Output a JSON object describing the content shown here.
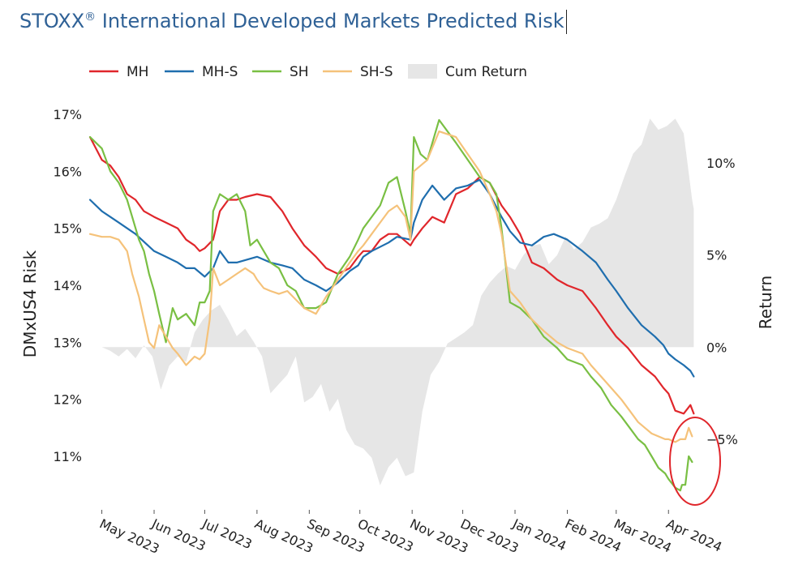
{
  "title_main": "STOXX",
  "title_reg": "®",
  "title_rest": " International Developed Markets Predicted Risk",
  "chart_data": {
    "type": "line",
    "title": "STOXX® International Developed Markets Predicted Risk",
    "ylabel": "DMxUS4 Risk",
    "y2label": "Return",
    "ylim": [
      10,
      17
    ],
    "y2lim": [
      -8.8,
      12.8
    ],
    "y_ticks": [
      "17%",
      "16%",
      "15%",
      "14%",
      "13%",
      "12%",
      "11%"
    ],
    "y_tick_values": [
      17,
      16,
      15,
      14,
      13,
      12,
      11
    ],
    "y2_ticks": [
      "10%",
      "5%",
      "0%",
      "−5%"
    ],
    "y2_tick_values": [
      10,
      5,
      0,
      -5
    ],
    "x_ticks": [
      "May 2023",
      "Jun 2023",
      "Jul 2023",
      "Aug 2023",
      "Sep 2023",
      "Oct 2023",
      "Nov 2023",
      "Dec 2023",
      "Jan 2024",
      "Feb 2024",
      "Mar 2024",
      "Apr 2024"
    ],
    "x_tick_days": [
      0,
      31,
      61,
      92,
      123,
      153,
      184,
      214,
      245,
      276,
      305,
      336
    ],
    "x_range_days": [
      -7,
      358
    ],
    "legend_position": "top",
    "legend": [
      "MH",
      "MH-S",
      "SH",
      "SH-S",
      "Cum Return"
    ],
    "annotation": "red circle highlighting latest values (Apr 2024)",
    "series": [
      {
        "name": "MH",
        "color": "#e0262b",
        "axis": "left",
        "days": [
          -7,
          0,
          5,
          10,
          15,
          20,
          25,
          31,
          38,
          45,
          50,
          55,
          58,
          61,
          66,
          70,
          75,
          80,
          85,
          92,
          100,
          107,
          113,
          120,
          127,
          133,
          140,
          147,
          152,
          155,
          160,
          165,
          170,
          175,
          183,
          185,
          190,
          196,
          203,
          210,
          217,
          224,
          230,
          237,
          242,
          248,
          255,
          262,
          270,
          276,
          285,
          293,
          300,
          305,
          312,
          320,
          328,
          333,
          336,
          340,
          345,
          349,
          351
        ],
        "values": [
          16.6,
          16.2,
          16.1,
          15.9,
          15.6,
          15.5,
          15.3,
          15.2,
          15.1,
          15.0,
          14.8,
          14.7,
          14.6,
          14.65,
          14.8,
          15.3,
          15.5,
          15.5,
          15.55,
          15.6,
          15.55,
          15.3,
          15.0,
          14.7,
          14.5,
          14.3,
          14.2,
          14.3,
          14.5,
          14.6,
          14.6,
          14.8,
          14.9,
          14.9,
          14.7,
          14.8,
          15.0,
          15.2,
          15.1,
          15.6,
          15.7,
          15.9,
          15.8,
          15.4,
          15.2,
          14.9,
          14.4,
          14.3,
          14.1,
          14.0,
          13.9,
          13.6,
          13.3,
          13.1,
          12.9,
          12.6,
          12.4,
          12.2,
          12.1,
          11.8,
          11.75,
          11.9,
          11.75
        ]
      },
      {
        "name": "MH-S",
        "color": "#1f6eae",
        "axis": "left",
        "days": [
          -7,
          0,
          5,
          10,
          20,
          31,
          38,
          45,
          50,
          55,
          61,
          66,
          70,
          75,
          80,
          92,
          100,
          107,
          113,
          120,
          127,
          133,
          140,
          147,
          152,
          155,
          160,
          170,
          175,
          183,
          185,
          190,
          196,
          203,
          210,
          217,
          224,
          230,
          237,
          242,
          248,
          255,
          262,
          268,
          276,
          285,
          293,
          300,
          305,
          312,
          320,
          328,
          333,
          336,
          340,
          345,
          349,
          351
        ],
        "values": [
          15.5,
          15.3,
          15.2,
          15.1,
          14.9,
          14.6,
          14.5,
          14.4,
          14.3,
          14.3,
          14.15,
          14.3,
          14.6,
          14.4,
          14.4,
          14.5,
          14.4,
          14.35,
          14.3,
          14.1,
          14.0,
          13.9,
          14.05,
          14.25,
          14.35,
          14.5,
          14.6,
          14.75,
          14.85,
          14.8,
          15.1,
          15.5,
          15.75,
          15.5,
          15.7,
          15.75,
          15.85,
          15.6,
          15.2,
          14.95,
          14.75,
          14.7,
          14.85,
          14.9,
          14.8,
          14.6,
          14.4,
          14.1,
          13.9,
          13.6,
          13.3,
          13.1,
          12.95,
          12.8,
          12.7,
          12.6,
          12.5,
          12.4
        ]
      },
      {
        "name": "SH",
        "color": "#79bf43",
        "axis": "left",
        "days": [
          -7,
          0,
          5,
          10,
          15,
          18,
          22,
          25,
          28,
          31,
          34,
          38,
          42,
          45,
          50,
          55,
          58,
          61,
          64,
          66,
          70,
          75,
          80,
          85,
          88,
          92,
          96,
          100,
          105,
          110,
          115,
          120,
          127,
          133,
          140,
          147,
          152,
          155,
          160,
          165,
          170,
          175,
          180,
          183,
          185,
          189,
          193,
          200,
          210,
          217,
          224,
          230,
          234,
          237,
          242,
          248,
          255,
          262,
          270,
          276,
          285,
          290,
          296,
          302,
          308,
          313,
          318,
          322,
          326,
          330,
          334,
          336,
          340,
          343,
          344,
          346,
          348,
          350
        ],
        "values": [
          16.6,
          16.4,
          16.0,
          15.8,
          15.5,
          15.2,
          14.8,
          14.6,
          14.2,
          13.9,
          13.5,
          13.0,
          13.6,
          13.4,
          13.5,
          13.3,
          13.7,
          13.7,
          13.9,
          15.3,
          15.6,
          15.5,
          15.6,
          15.3,
          14.7,
          14.8,
          14.6,
          14.4,
          14.3,
          14.0,
          13.9,
          13.6,
          13.6,
          13.7,
          14.2,
          14.5,
          14.8,
          15.0,
          15.2,
          15.4,
          15.8,
          15.9,
          15.3,
          14.9,
          16.6,
          16.3,
          16.2,
          16.9,
          16.5,
          16.2,
          15.9,
          15.8,
          15.6,
          15.0,
          13.7,
          13.6,
          13.4,
          13.1,
          12.9,
          12.7,
          12.6,
          12.4,
          12.2,
          11.9,
          11.7,
          11.5,
          11.3,
          11.2,
          11.0,
          10.8,
          10.7,
          10.6,
          10.45,
          10.4,
          10.5,
          10.5,
          11.0,
          10.9
        ]
      },
      {
        "name": "SH-S",
        "color": "#f5c27a",
        "axis": "left",
        "days": [
          -7,
          0,
          5,
          10,
          15,
          18,
          22,
          25,
          28,
          31,
          34,
          38,
          42,
          45,
          50,
          55,
          58,
          61,
          64,
          66,
          70,
          75,
          80,
          85,
          90,
          92,
          96,
          100,
          105,
          110,
          115,
          120,
          127,
          133,
          140,
          147,
          152,
          155,
          160,
          165,
          170,
          175,
          180,
          183,
          185,
          189,
          193,
          200,
          210,
          217,
          224,
          230,
          234,
          237,
          242,
          248,
          255,
          262,
          270,
          276,
          285,
          290,
          296,
          302,
          308,
          313,
          318,
          322,
          326,
          330,
          334,
          336,
          340,
          343,
          344,
          346,
          348,
          350
        ],
        "values": [
          14.9,
          14.85,
          14.85,
          14.8,
          14.6,
          14.2,
          13.8,
          13.4,
          13.0,
          12.9,
          13.3,
          13.1,
          12.9,
          12.8,
          12.6,
          12.75,
          12.7,
          12.8,
          13.4,
          14.3,
          14.0,
          14.1,
          14.2,
          14.3,
          14.2,
          14.1,
          13.95,
          13.9,
          13.85,
          13.9,
          13.75,
          13.6,
          13.5,
          13.8,
          14.1,
          14.4,
          14.6,
          14.7,
          14.9,
          15.1,
          15.3,
          15.4,
          15.2,
          14.8,
          16.0,
          16.1,
          16.2,
          16.7,
          16.6,
          16.3,
          16.0,
          15.6,
          15.3,
          14.9,
          13.9,
          13.7,
          13.4,
          13.2,
          13.0,
          12.9,
          12.8,
          12.6,
          12.4,
          12.2,
          12.0,
          11.8,
          11.6,
          11.5,
          11.4,
          11.35,
          11.3,
          11.3,
          11.25,
          11.3,
          11.3,
          11.3,
          11.5,
          11.35
        ]
      },
      {
        "name": "Cum Return",
        "color": "#e6e6e6",
        "axis": "right",
        "kind": "area",
        "days": [
          -7,
          0,
          5,
          10,
          15,
          20,
          25,
          30,
          35,
          40,
          45,
          50,
          55,
          60,
          65,
          70,
          75,
          80,
          85,
          90,
          95,
          100,
          105,
          110,
          115,
          120,
          125,
          130,
          135,
          140,
          145,
          150,
          155,
          160,
          165,
          170,
          175,
          180,
          185,
          190,
          195,
          200,
          205,
          210,
          215,
          220,
          225,
          230,
          235,
          240,
          245,
          250,
          255,
          260,
          265,
          270,
          275,
          280,
          285,
          290,
          295,
          300,
          305,
          310,
          315,
          320,
          325,
          330,
          335,
          340,
          345,
          350,
          351
        ],
        "values": [
          0,
          0,
          -0.2,
          -0.5,
          -0.1,
          -0.6,
          0.1,
          -0.5,
          -2.3,
          -1.0,
          -0.5,
          -0.8,
          0.8,
          1.5,
          2.0,
          2.3,
          1.5,
          0.6,
          1.0,
          0.3,
          -0.5,
          -2.5,
          -2.0,
          -1.5,
          -0.5,
          -3.0,
          -2.7,
          -2.0,
          -3.5,
          -2.8,
          -4.5,
          -5.3,
          -5.5,
          -6.0,
          -7.5,
          -6.5,
          -6.0,
          -7.0,
          -6.8,
          -3.5,
          -1.5,
          -0.8,
          0.2,
          0.5,
          0.8,
          1.2,
          2.8,
          3.5,
          4.0,
          4.4,
          4.2,
          5.0,
          5.5,
          5.6,
          4.5,
          5.0,
          6.0,
          5.3,
          5.7,
          6.5,
          6.7,
          7.0,
          8.0,
          9.3,
          10.5,
          11.0,
          12.4,
          11.8,
          12.0,
          12.4,
          11.6,
          8.0,
          7.5
        ]
      }
    ]
  }
}
